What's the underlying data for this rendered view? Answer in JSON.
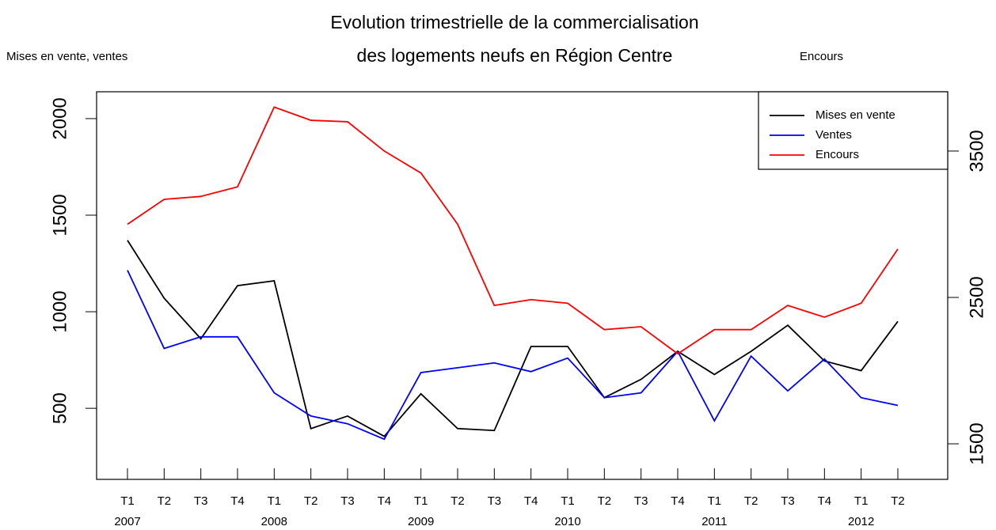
{
  "chart_data": {
    "type": "line",
    "title": "Evolution trimestrielle de la commercialisation",
    "subtitle": "des logements neufs en Région Centre",
    "y_label": "Mises en vente, ventes",
    "y2_label": "Encours",
    "categories": [
      "T1",
      "T2",
      "T3",
      "T4",
      "T1",
      "T2",
      "T3",
      "T4",
      "T1",
      "T2",
      "T3",
      "T4",
      "T1",
      "T2",
      "T3",
      "T4",
      "T1",
      "T2",
      "T3",
      "T4",
      "T1",
      "T2"
    ],
    "years": [
      "2007",
      "2008",
      "2009",
      "2010",
      "2011",
      "2012"
    ],
    "series": [
      {
        "name": "Mises en vente",
        "color": "#000000",
        "values": [
          1370,
          1070,
          860,
          1135,
          1160,
          395,
          460,
          355,
          575,
          395,
          385,
          820,
          820,
          555,
          650,
          795,
          675,
          795,
          930,
          745,
          695,
          950
        ]
      },
      {
        "name": "Ventes",
        "color": "#0000ff",
        "values": [
          1215,
          810,
          870,
          870,
          580,
          460,
          420,
          340,
          685,
          710,
          735,
          690,
          760,
          555,
          580,
          795,
          435,
          770,
          590,
          755,
          555,
          515
        ]
      },
      {
        "name": "Encours",
        "color": "#ff0000",
        "axis": "y2",
        "values": [
          3000,
          3170,
          3190,
          3255,
          3800,
          3710,
          3700,
          3500,
          3350,
          3000,
          2445,
          2485,
          2460,
          2280,
          2300,
          2115,
          2280,
          2280,
          2445,
          2365,
          2460,
          2830
        ]
      }
    ],
    "ylim": [
      132,
      2139
    ],
    "yticks": [
      500,
      1000,
      1500,
      2000
    ],
    "y2lim": [
      1257,
      3905
    ],
    "y2ticks": [
      1500,
      2500,
      3500
    ],
    "legend": "top-right"
  }
}
